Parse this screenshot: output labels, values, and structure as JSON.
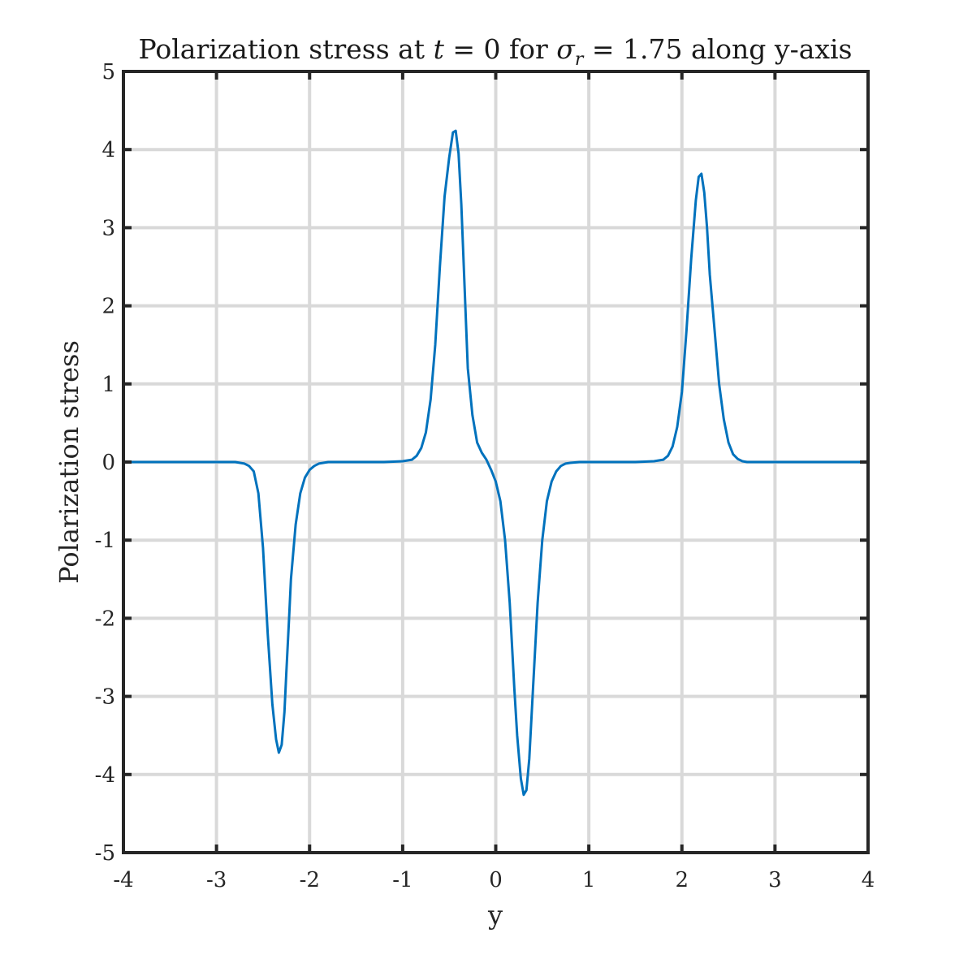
{
  "chart_data": {
    "type": "line",
    "title_parts": {
      "prefix": "Polarization stress at ",
      "t_symbol": "t",
      "t_eq": " = 0 for ",
      "sigma_symbol": "σ",
      "sigma_sub": "r",
      "suffix": " = 1.75 along y-axis"
    },
    "xlabel": "y",
    "ylabel": "Polarization stress",
    "xlim": [
      -4,
      4
    ],
    "ylim": [
      -5,
      5
    ],
    "xticks": [
      -4,
      -3,
      -2,
      -1,
      0,
      1,
      2,
      3,
      4
    ],
    "yticks": [
      -5,
      -4,
      -3,
      -2,
      -1,
      0,
      1,
      2,
      3,
      4,
      5
    ],
    "grid": true,
    "series": [
      {
        "color": "#0072bd",
        "x": [
          -4.0,
          -3.4,
          -3.0,
          -2.8,
          -2.7,
          -2.65,
          -2.6,
          -2.55,
          -2.5,
          -2.45,
          -2.4,
          -2.36,
          -2.33,
          -2.3,
          -2.27,
          -2.25,
          -2.22,
          -2.2,
          -2.15,
          -2.1,
          -2.05,
          -2.0,
          -1.95,
          -1.9,
          -1.8,
          -1.7,
          -1.5,
          -1.2,
          -1.0,
          -0.9,
          -0.85,
          -0.8,
          -0.75,
          -0.7,
          -0.65,
          -0.6,
          -0.55,
          -0.5,
          -0.46,
          -0.43,
          -0.4,
          -0.37,
          -0.35,
          -0.32,
          -0.3,
          -0.25,
          -0.2,
          -0.15,
          -0.1,
          -0.05,
          0.0,
          0.05,
          0.1,
          0.15,
          0.2,
          0.23,
          0.27,
          0.3,
          0.33,
          0.36,
          0.4,
          0.45,
          0.5,
          0.55,
          0.6,
          0.65,
          0.7,
          0.75,
          0.8,
          0.9,
          1.0,
          1.2,
          1.5,
          1.7,
          1.8,
          1.85,
          1.9,
          1.95,
          2.0,
          2.05,
          2.1,
          2.15,
          2.18,
          2.21,
          2.24,
          2.27,
          2.3,
          2.35,
          2.4,
          2.45,
          2.5,
          2.55,
          2.6,
          2.65,
          2.7,
          2.8,
          3.0,
          3.4,
          4.0
        ],
        "y": [
          0,
          0,
          0,
          0,
          -0.02,
          -0.05,
          -0.12,
          -0.4,
          -1.1,
          -2.2,
          -3.1,
          -3.55,
          -3.72,
          -3.62,
          -3.2,
          -2.7,
          -2.0,
          -1.5,
          -0.8,
          -0.4,
          -0.2,
          -0.1,
          -0.05,
          -0.02,
          0,
          0,
          0,
          0,
          0.01,
          0.03,
          0.08,
          0.18,
          0.38,
          0.8,
          1.5,
          2.5,
          3.4,
          3.9,
          4.22,
          4.24,
          3.95,
          3.3,
          2.7,
          1.8,
          1.2,
          0.6,
          0.25,
          0.12,
          0.03,
          -0.1,
          -0.25,
          -0.5,
          -1.0,
          -1.8,
          -2.9,
          -3.5,
          -4.05,
          -4.26,
          -4.2,
          -3.8,
          -2.9,
          -1.8,
          -1.0,
          -0.5,
          -0.25,
          -0.12,
          -0.05,
          -0.02,
          -0.01,
          0,
          0,
          0,
          0,
          0.01,
          0.03,
          0.08,
          0.2,
          0.45,
          0.9,
          1.7,
          2.6,
          3.35,
          3.65,
          3.69,
          3.45,
          3.0,
          2.4,
          1.7,
          1.0,
          0.55,
          0.25,
          0.1,
          0.04,
          0.01,
          0,
          0,
          0,
          0,
          0
        ]
      }
    ]
  }
}
